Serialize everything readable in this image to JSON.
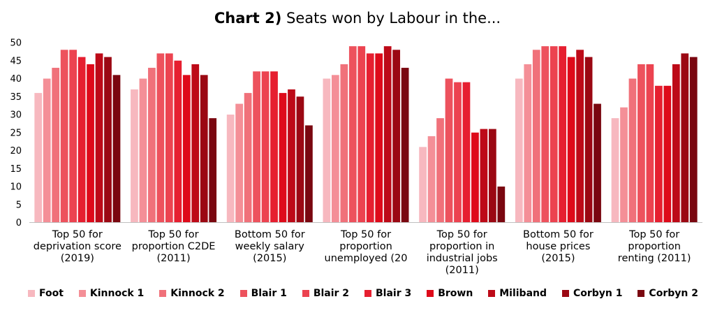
{
  "title": {
    "prefix": "Chart 2)",
    "text": " Seats won by Labour in the..."
  },
  "chart_data": {
    "type": "bar",
    "title": "Chart 2) Seats won by Labour in the...",
    "xlabel": "",
    "ylabel": "",
    "ylim": [
      0,
      50
    ],
    "yticks": [
      "0",
      "5",
      "10",
      "15",
      "20",
      "25",
      "30",
      "35",
      "40",
      "45",
      "50"
    ],
    "grid": false,
    "legend_position": "bottom",
    "categories": [
      "Top 50 for\ndeprivation score\n(2019)",
      "Top 50 for\nproportion C2DE\n(2011)",
      "Bottom 50 for\nweekly salary\n(2015)",
      "Top 50 for\nproportion\nunemployed (20",
      "Top 50 for\nproportion in\nindustrial jobs\n(2011)",
      "Bottom 50 for\nhouse prices\n(2015)",
      "Top 50 for\nproportion\nrenting (2011)"
    ],
    "series": [
      {
        "name": "Foot",
        "color": "#f7b8bf",
        "values": [
          36,
          37,
          30,
          40,
          21,
          40,
          29
        ]
      },
      {
        "name": "Kinnock 1",
        "color": "#f48f97",
        "values": [
          40,
          40,
          33,
          41,
          24,
          44,
          32
        ]
      },
      {
        "name": "Kinnock 2",
        "color": "#f0717a",
        "values": [
          43,
          43,
          36,
          44,
          29,
          48,
          40
        ]
      },
      {
        "name": "Blair 1",
        "color": "#ed525d",
        "values": [
          48,
          47,
          42,
          49,
          40,
          49,
          44
        ]
      },
      {
        "name": "Blair 2",
        "color": "#ec4350",
        "values": [
          48,
          47,
          42,
          49,
          39,
          49,
          44
        ]
      },
      {
        "name": "Blair 3",
        "color": "#e61f30",
        "values": [
          46,
          45,
          42,
          47,
          39,
          49,
          38
        ]
      },
      {
        "name": "Brown",
        "color": "#de0a1a",
        "values": [
          44,
          41,
          36,
          47,
          25,
          46,
          38
        ]
      },
      {
        "name": "Miliband",
        "color": "#bd0a18",
        "values": [
          47,
          44,
          37,
          49,
          26,
          48,
          44
        ]
      },
      {
        "name": "Corbyn 1",
        "color": "#9b0813",
        "values": [
          46,
          41,
          35,
          48,
          26,
          46,
          47
        ]
      },
      {
        "name": "Corbyn 2",
        "color": "#7a0710",
        "values": [
          41,
          29,
          27,
          43,
          10,
          33,
          46
        ]
      }
    ]
  }
}
